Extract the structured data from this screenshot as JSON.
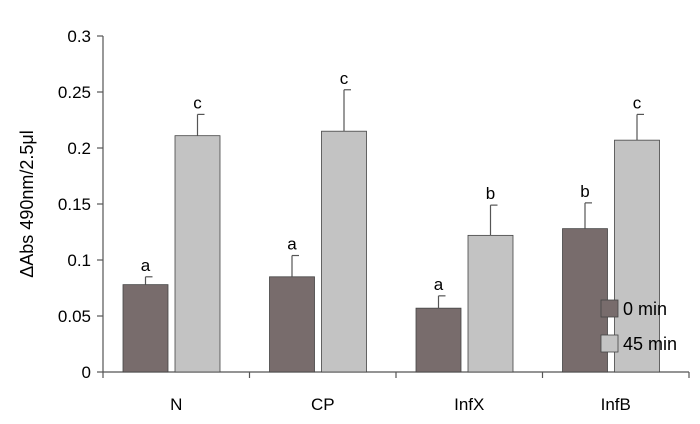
{
  "chart_data": {
    "type": "bar",
    "ylabel": "ΔAbs 490nm/2.5μl",
    "xlabel": "",
    "ylim": [
      0,
      0.3
    ],
    "yticks": [
      "0",
      "0.05",
      "0.1",
      "0.15",
      "0.2",
      "0.25",
      "0.3"
    ],
    "categories": [
      "N",
      "CP",
      "InfX",
      "InfB"
    ],
    "grid": false,
    "legend_position": "bottom-right",
    "series": [
      {
        "name": "0 min",
        "color": "#786c6c",
        "values": [
          0.078,
          0.085,
          0.057,
          0.128
        ],
        "errors": [
          0.007,
          0.019,
          0.011,
          0.023
        ],
        "labels": [
          "a",
          "a",
          "a",
          "b"
        ]
      },
      {
        "name": "45 min",
        "color": "#c3c3c3",
        "values": [
          0.211,
          0.215,
          0.122,
          0.207
        ],
        "errors": [
          0.019,
          0.037,
          0.027,
          0.023
        ],
        "labels": [
          "c",
          "c",
          "b",
          "c"
        ]
      }
    ]
  }
}
